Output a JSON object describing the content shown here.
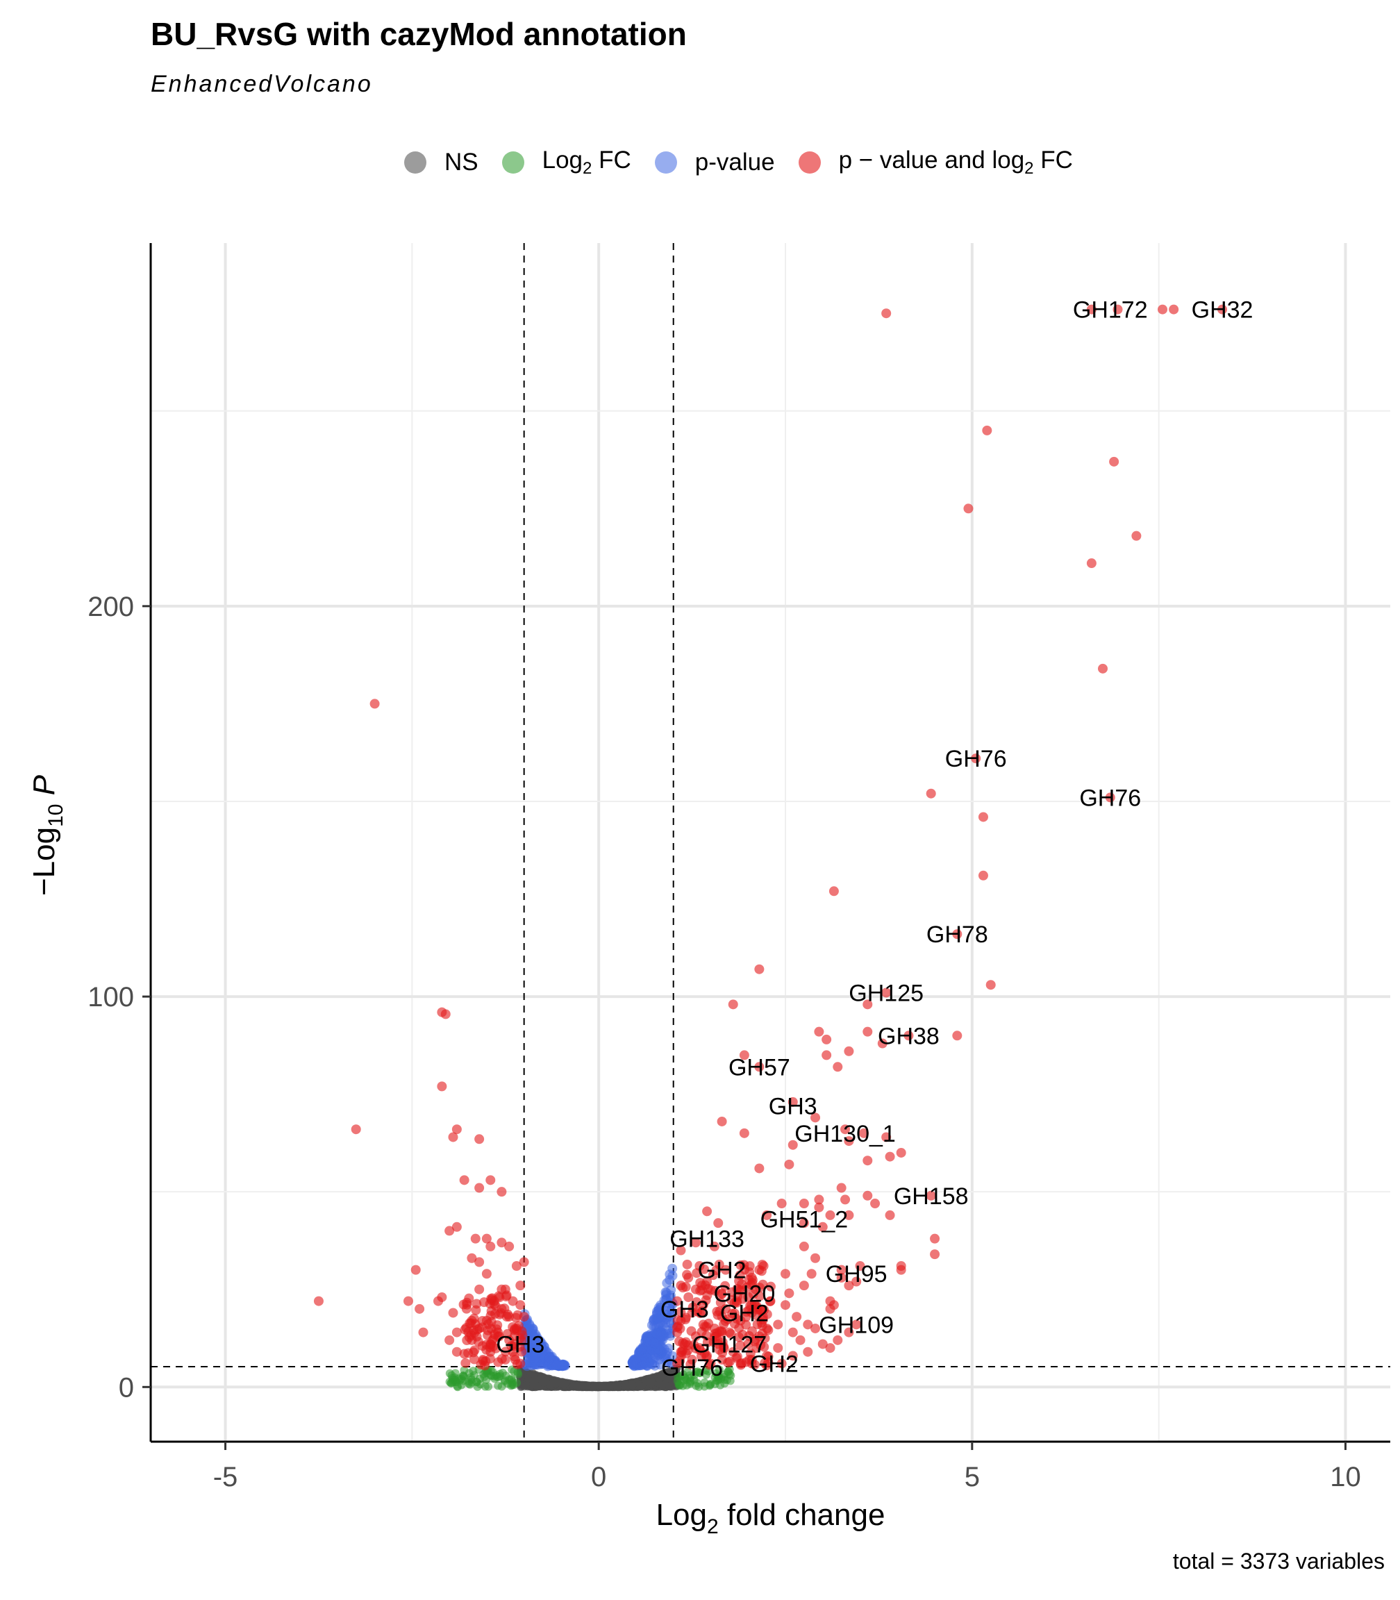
{
  "title": "BU_RvsG  with cazyMod annotation",
  "subtitle": "EnhancedVolcano",
  "caption": "total = 3373 variables",
  "legend": {
    "items": [
      {
        "key": "ns",
        "label": "NS",
        "color": "#5a5a5a"
      },
      {
        "key": "fc",
        "label_main": "Log",
        "label_sub": "2",
        "label_tail": " FC",
        "color": "#2e9a2e"
      },
      {
        "key": "p",
        "label": "p-value",
        "color": "#4169e1"
      },
      {
        "key": "pfc",
        "label_main": "p − value and log",
        "label_sub": "2",
        "label_tail": " FC",
        "color": "#e31a1c"
      }
    ]
  },
  "chart_data": {
    "type": "scatter",
    "xlabel_main": "Log",
    "xlabel_sub": "2",
    "xlabel_tail": " fold change",
    "ylabel_main": "−Log",
    "ylabel_sub": "10",
    "ylabel_tail": " P",
    "xlim": [
      -6,
      10.6
    ],
    "ylim": [
      -14,
      293
    ],
    "xticks": [
      -5,
      0,
      5,
      10
    ],
    "yticks": [
      0,
      100,
      200
    ],
    "grid": true,
    "cutoffs": {
      "fc": [
        -1,
        1
      ],
      "p": 5.2
    },
    "points_red": [
      [
        3.85,
        275
      ],
      [
        5.2,
        245
      ],
      [
        6.9,
        237
      ],
      [
        4.95,
        225
      ],
      [
        7.2,
        218
      ],
      [
        6.6,
        211
      ],
      [
        6.75,
        184
      ],
      [
        -3.0,
        175
      ],
      [
        5.05,
        161
      ],
      [
        4.45,
        152
      ],
      [
        6.85,
        151
      ],
      [
        5.15,
        146
      ],
      [
        5.15,
        131
      ],
      [
        3.15,
        127
      ],
      [
        4.8,
        116
      ],
      [
        2.15,
        107
      ],
      [
        5.25,
        103
      ],
      [
        3.85,
        101
      ],
      [
        1.8,
        98
      ],
      [
        3.6,
        98
      ],
      [
        -2.1,
        96
      ],
      [
        -2.05,
        95.5
      ],
      [
        2.95,
        91
      ],
      [
        3.6,
        91
      ],
      [
        3.05,
        89
      ],
      [
        3.8,
        88
      ],
      [
        4.15,
        90
      ],
      [
        4.8,
        90
      ],
      [
        1.95,
        85
      ],
      [
        3.05,
        85
      ],
      [
        3.35,
        86
      ],
      [
        3.2,
        82
      ],
      [
        2.15,
        82
      ],
      [
        -2.1,
        77
      ],
      [
        2.6,
        73
      ],
      [
        1.65,
        68
      ],
      [
        -3.25,
        66
      ],
      [
        2.9,
        69
      ],
      [
        -1.9,
        66
      ],
      [
        1.95,
        65
      ],
      [
        -1.95,
        64
      ],
      [
        3.3,
        66
      ],
      [
        3.55,
        65
      ],
      [
        -1.6,
        63.5
      ],
      [
        2.6,
        62
      ],
      [
        3.35,
        63
      ],
      [
        3.85,
        64
      ],
      [
        4.05,
        60
      ],
      [
        3.9,
        59
      ],
      [
        3.6,
        58
      ],
      [
        2.55,
        57
      ],
      [
        2.15,
        56
      ],
      [
        -1.8,
        53
      ],
      [
        -1.45,
        53
      ],
      [
        -1.6,
        51
      ],
      [
        3.25,
        51
      ],
      [
        3.6,
        49
      ],
      [
        4.45,
        49
      ],
      [
        -1.3,
        50
      ],
      [
        2.95,
        48
      ],
      [
        2.45,
        47
      ],
      [
        2.75,
        47
      ],
      [
        2.95,
        46
      ],
      [
        3.3,
        48
      ],
      [
        3.7,
        47
      ],
      [
        1.45,
        45
      ],
      [
        2.25,
        44
      ],
      [
        3.9,
        44
      ],
      [
        3.35,
        44
      ],
      [
        1.6,
        42
      ],
      [
        -1.9,
        41
      ],
      [
        -2.0,
        40
      ],
      [
        2.75,
        42
      ],
      [
        3.0,
        41
      ],
      [
        3.1,
        44
      ],
      [
        -1.65,
        38
      ],
      [
        -1.5,
        38
      ],
      [
        1.3,
        37
      ],
      [
        1.55,
        36
      ],
      [
        2.75,
        36
      ],
      [
        -1.3,
        37
      ],
      [
        -1.2,
        36
      ],
      [
        -1.45,
        36
      ],
      [
        1.1,
        35
      ],
      [
        4.5,
        38
      ],
      [
        4.5,
        34
      ],
      [
        -1.7,
        33
      ],
      [
        -1.6,
        32
      ],
      [
        -1.0,
        32
      ],
      [
        -1.1,
        31
      ],
      [
        1.35,
        31
      ],
      [
        1.7,
        30
      ],
      [
        2.15,
        30
      ],
      [
        2.9,
        33
      ],
      [
        3.25,
        30
      ],
      [
        3.5,
        31
      ],
      [
        4.05,
        31
      ],
      [
        4.05,
        30
      ],
      [
        -2.45,
        30
      ],
      [
        -1.5,
        29
      ],
      [
        1.2,
        28
      ],
      [
        1.45,
        27
      ],
      [
        2.05,
        28
      ],
      [
        2.5,
        29
      ],
      [
        2.85,
        29
      ],
      [
        3.25,
        28
      ],
      [
        3.45,
        27
      ],
      [
        -1.05,
        26
      ],
      [
        -1.25,
        25
      ],
      [
        1.1,
        26
      ],
      [
        1.3,
        25
      ],
      [
        1.65,
        24
      ],
      [
        2.1,
        25
      ],
      [
        2.55,
        24
      ],
      [
        2.75,
        26
      ],
      [
        3.35,
        26
      ],
      [
        -1.3,
        25
      ],
      [
        -1.6,
        25
      ],
      [
        -3.75,
        22
      ],
      [
        -2.55,
        22
      ],
      [
        -2.1,
        23
      ],
      [
        -2.15,
        22
      ],
      [
        -1.4,
        22
      ],
      [
        -1.15,
        22
      ],
      [
        1.05,
        22
      ],
      [
        1.4,
        21
      ],
      [
        1.85,
        22
      ],
      [
        2.3,
        22
      ],
      [
        2.5,
        21
      ],
      [
        3.1,
        22
      ],
      [
        -2.4,
        20
      ],
      [
        -1.95,
        19
      ],
      [
        -1.3,
        20
      ],
      [
        -1.05,
        21
      ],
      [
        1.25,
        19
      ],
      [
        1.65,
        18
      ],
      [
        2.05,
        19
      ],
      [
        2.65,
        18
      ],
      [
        3.15,
        21
      ],
      [
        3.1,
        20
      ],
      [
        -1.7,
        17
      ],
      [
        -1.5,
        17
      ],
      [
        -1.2,
        18
      ],
      [
        1.1,
        17
      ],
      [
        1.4,
        16
      ],
      [
        1.9,
        17
      ],
      [
        2.4,
        16
      ],
      [
        2.8,
        16
      ],
      [
        3.45,
        16
      ],
      [
        3.35,
        14
      ],
      [
        -2.35,
        14
      ],
      [
        -1.9,
        14
      ],
      [
        -1.6,
        15
      ],
      [
        -1.35,
        14
      ],
      [
        -1.1,
        15
      ],
      [
        1.05,
        14
      ],
      [
        1.3,
        13
      ],
      [
        1.75,
        14
      ],
      [
        2.15,
        13
      ],
      [
        2.6,
        14
      ],
      [
        2.9,
        15
      ],
      [
        3.2,
        12
      ],
      [
        -2.0,
        12
      ],
      [
        -1.7,
        12
      ],
      [
        -1.45,
        11
      ],
      [
        -1.2,
        12
      ],
      [
        1.15,
        11
      ],
      [
        1.6,
        11
      ],
      [
        2.0,
        11
      ],
      [
        2.4,
        10
      ],
      [
        3.0,
        11
      ],
      [
        3.1,
        10
      ],
      [
        -1.9,
        9
      ],
      [
        -1.45,
        9
      ],
      [
        -1.15,
        9
      ],
      [
        1.1,
        9
      ],
      [
        1.45,
        8
      ],
      [
        1.8,
        9
      ],
      [
        2.25,
        8
      ],
      [
        2.6,
        8
      ],
      [
        -1.55,
        7
      ],
      [
        -1.25,
        7
      ],
      [
        1.25,
        7
      ],
      [
        1.65,
        7
      ],
      [
        2.05,
        6
      ],
      [
        2.45,
        6
      ],
      [
        -1.05,
        6
      ],
      [
        1.05,
        6
      ],
      [
        1.5,
        6
      ],
      [
        1.9,
        6
      ],
      [
        6.6,
        276
      ],
      [
        6.95,
        276
      ],
      [
        7.55,
        276
      ],
      [
        7.7,
        276
      ],
      [
        8.35,
        276
      ],
      [
        -1.8,
        8.5
      ],
      [
        -1.35,
        13
      ],
      [
        1.2,
        23
      ],
      [
        1.7,
        20
      ],
      [
        2.2,
        18
      ],
      [
        2.7,
        12
      ],
      [
        1.35,
        10
      ],
      [
        1.55,
        15
      ],
      [
        2.8,
        9
      ],
      [
        -1.0,
        18
      ]
    ],
    "labels": [
      {
        "text": "GH172",
        "x": 6.85,
        "y": 276
      },
      {
        "text": "GH32",
        "x": 8.35,
        "y": 276
      },
      {
        "text": "GH76",
        "x": 5.05,
        "y": 161
      },
      {
        "text": "GH76",
        "x": 6.85,
        "y": 151
      },
      {
        "text": "GH78",
        "x": 4.8,
        "y": 116
      },
      {
        "text": "GH125",
        "x": 3.85,
        "y": 101
      },
      {
        "text": "GH38",
        "x": 4.15,
        "y": 90
      },
      {
        "text": "GH57",
        "x": 2.15,
        "y": 82
      },
      {
        "text": "GH3",
        "x": 2.6,
        "y": 72
      },
      {
        "text": "GH130_1",
        "x": 3.3,
        "y": 65
      },
      {
        "text": "GH158",
        "x": 4.45,
        "y": 49
      },
      {
        "text": "GH51_2",
        "x": 2.75,
        "y": 43
      },
      {
        "text": "GH133",
        "x": 1.45,
        "y": 38
      },
      {
        "text": "GH2",
        "x": 1.65,
        "y": 30
      },
      {
        "text": "GH95",
        "x": 3.45,
        "y": 29
      },
      {
        "text": "GH20",
        "x": 1.95,
        "y": 24
      },
      {
        "text": "GH3",
        "x": 1.15,
        "y": 20
      },
      {
        "text": "GH2",
        "x": 1.95,
        "y": 19
      },
      {
        "text": "GH109",
        "x": 3.45,
        "y": 16
      },
      {
        "text": "GH127",
        "x": 1.75,
        "y": 11
      },
      {
        "text": "GH3",
        "x": -1.05,
        "y": 11
      },
      {
        "text": "GH76",
        "x": 1.25,
        "y": 5
      },
      {
        "text": "GH2",
        "x": 2.35,
        "y": 6
      }
    ]
  }
}
